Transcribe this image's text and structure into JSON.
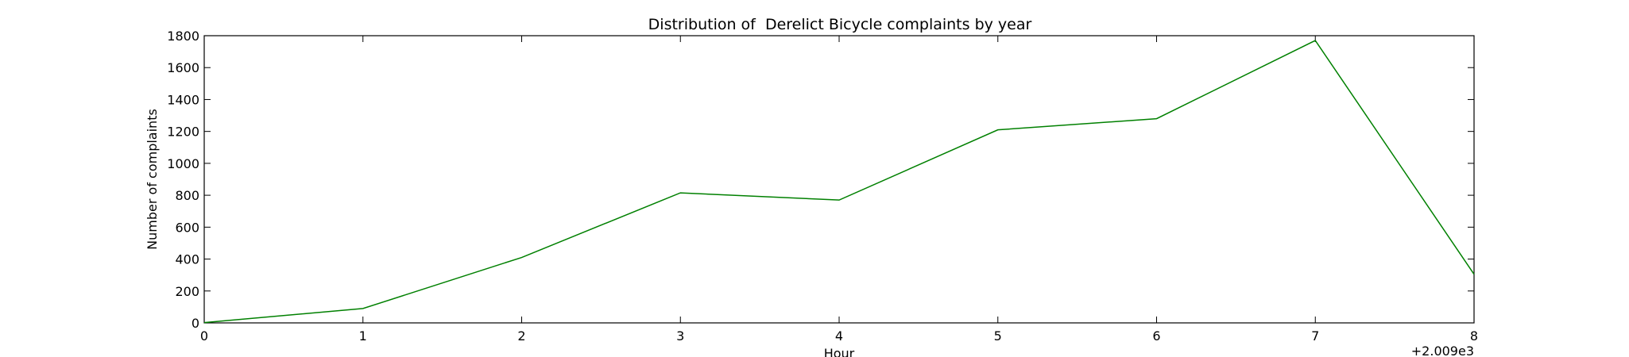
{
  "chart_data": {
    "type": "line",
    "title": "Distribution of  Derelict Bicycle complaints by year",
    "xlabel": "Hour",
    "ylabel": "Number of complaints",
    "x_offset_label": "+2.009e3",
    "x": [
      0,
      1,
      2,
      3,
      4,
      5,
      6,
      7,
      8
    ],
    "xlim": [
      0,
      8
    ],
    "ylim": [
      0,
      1800
    ],
    "x_ticks": [
      0,
      1,
      2,
      3,
      4,
      5,
      6,
      7,
      8
    ],
    "y_ticks": [
      0,
      200,
      400,
      600,
      800,
      1000,
      1200,
      1400,
      1600,
      1800
    ],
    "grid": false,
    "series": [
      {
        "color": "#008000",
        "values": [
          2,
          90,
          410,
          815,
          770,
          1210,
          1280,
          1770,
          305
        ]
      }
    ]
  }
}
